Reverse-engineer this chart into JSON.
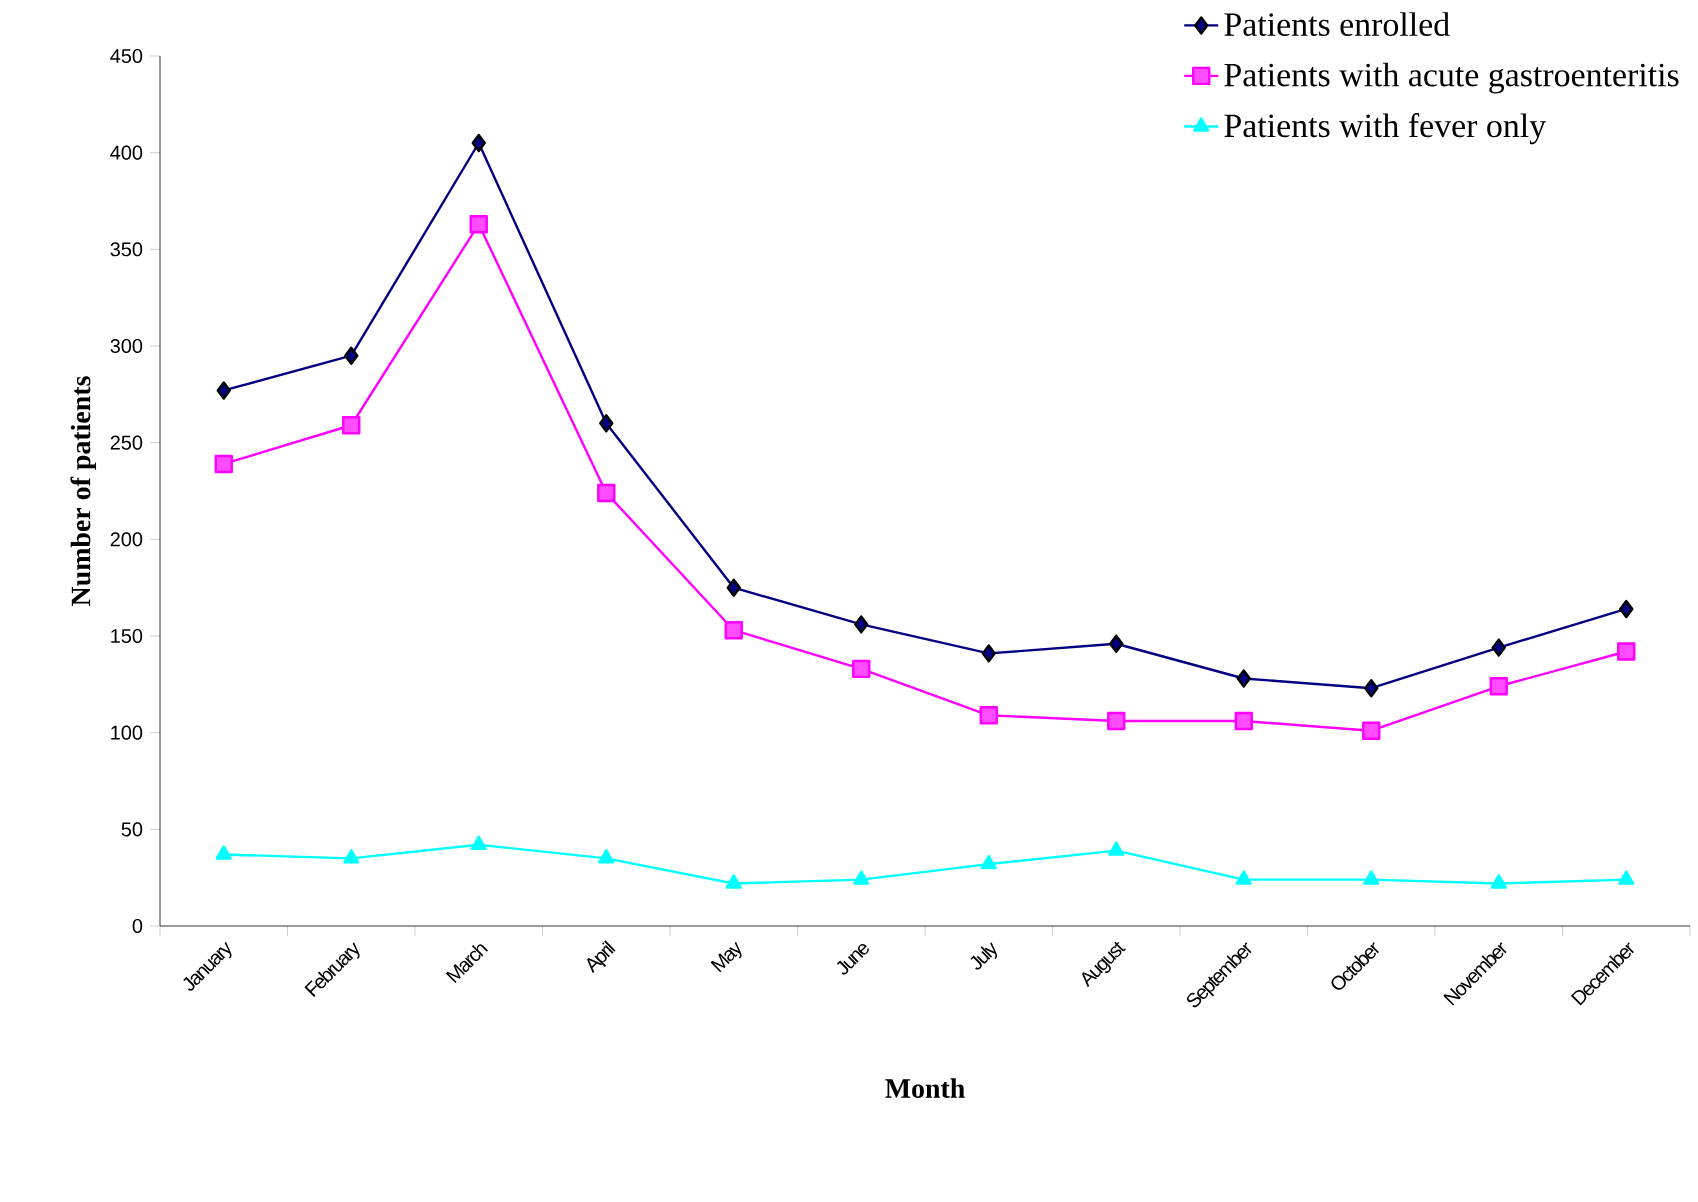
{
  "chart_data": {
    "type": "line",
    "xlabel": "Month",
    "ylabel": "Number of patients",
    "categories": [
      "January",
      "February",
      "March",
      "April",
      "May",
      "June",
      "July",
      "August",
      "September",
      "October",
      "November",
      "December"
    ],
    "series": [
      {
        "name": "Patients enrolled",
        "color": "#000080",
        "marker": "diamond",
        "values": [
          277,
          295,
          405,
          260,
          175,
          156,
          141,
          146,
          128,
          123,
          144,
          164
        ]
      },
      {
        "name": "Patients with acute gastroenteritis",
        "color": "#ff00ff",
        "marker": "square",
        "values": [
          239,
          259,
          363,
          224,
          153,
          133,
          109,
          106,
          106,
          101,
          124,
          142
        ]
      },
      {
        "name": "Patients with fever only",
        "color": "#00ffff",
        "marker": "triangle",
        "values": [
          37,
          35,
          42,
          35,
          22,
          24,
          32,
          39,
          24,
          24,
          22,
          24
        ]
      }
    ],
    "ylim": [
      0,
      450
    ],
    "yticks": [
      0,
      50,
      100,
      150,
      200,
      250,
      300,
      350,
      400,
      450
    ],
    "grid": false,
    "legend": "top right",
    "line_style": "solid"
  }
}
